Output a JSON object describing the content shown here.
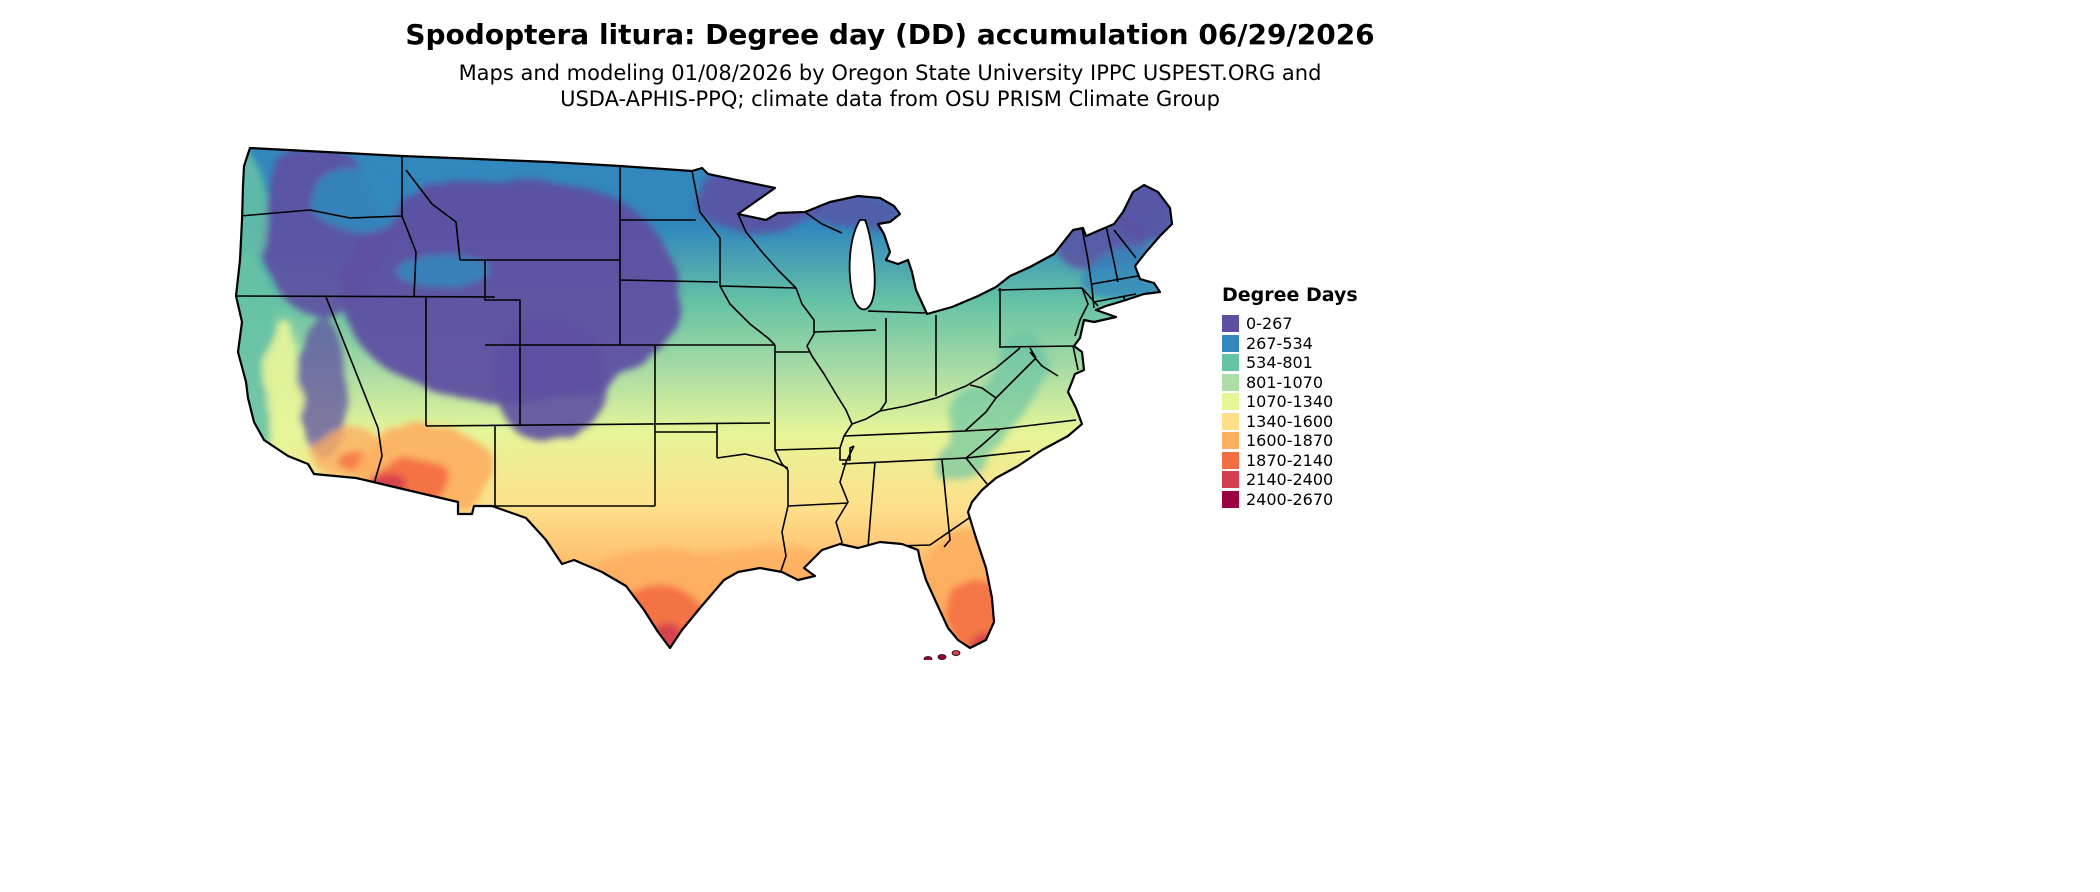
{
  "title": "Spodoptera litura: Degree day (DD) accumulation 06/29/2026",
  "subtitle_line1": "Maps and modeling 01/08/2026 by Oregon State University IPPC USPEST.ORG and",
  "subtitle_line2": "USDA-APHIS-PPQ; climate data from OSU PRISM Climate Group",
  "legend": {
    "title": "Degree Days",
    "entries": [
      {
        "label": "0-267",
        "color": "#5e4fa2"
      },
      {
        "label": "267-534",
        "color": "#3288bd"
      },
      {
        "label": "534-801",
        "color": "#66c2a5"
      },
      {
        "label": "801-1070",
        "color": "#abdda4"
      },
      {
        "label": "1070-1340",
        "color": "#e6f598"
      },
      {
        "label": "1340-1600",
        "color": "#fee08b"
      },
      {
        "label": "1600-1870",
        "color": "#fdae61"
      },
      {
        "label": "1870-2140",
        "color": "#f46d43"
      },
      {
        "label": "2140-2400",
        "color": "#d53e4f"
      },
      {
        "label": "2400-2670",
        "color": "#9e0142"
      }
    ]
  },
  "chart_data": {
    "type": "choropleth_map",
    "region": "Continental United States",
    "variable": "Degree day (DD) accumulation for Spodoptera litura",
    "date_shown": "06/29/2026",
    "model_run_date": "01/08/2026",
    "legend_title": "Degree Days",
    "bins": [
      {
        "range": "0-267",
        "color": "#5e4fa2"
      },
      {
        "range": "267-534",
        "color": "#3288bd"
      },
      {
        "range": "534-801",
        "color": "#66c2a5"
      },
      {
        "range": "801-1070",
        "color": "#abdda4"
      },
      {
        "range": "1070-1340",
        "color": "#e6f598"
      },
      {
        "range": "1340-1600",
        "color": "#fee08b"
      },
      {
        "range": "1600-1870",
        "color": "#fdae61"
      },
      {
        "range": "1870-2140",
        "color": "#f46d43"
      },
      {
        "range": "2140-2400",
        "color": "#d53e4f"
      },
      {
        "range": "2400-2670",
        "color": "#9e0142"
      }
    ]
  }
}
